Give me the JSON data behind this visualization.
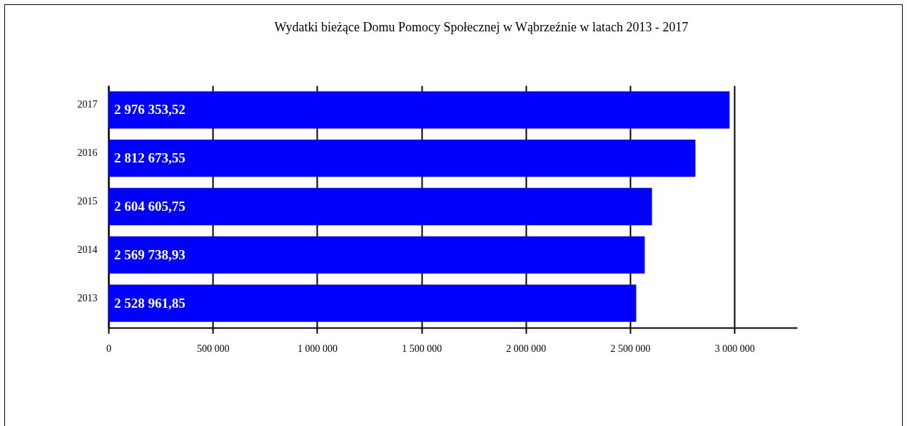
{
  "chart_data": {
    "type": "bar",
    "orientation": "horizontal",
    "title": "Wydatki bieżące Domu Pomocy Społecznej w Wąbrzeźnie w latach 2013 - 2017",
    "categories": [
      "2017",
      "2016",
      "2015",
      "2014",
      "2013"
    ],
    "values": [
      2976353.52,
      2812673.55,
      2604605.75,
      2569738.93,
      2528961.85
    ],
    "value_labels": [
      "2 976 353,52",
      "2 812 673,55",
      "2 604 605,75",
      "2 569 738,93",
      "2 528 961,85"
    ],
    "color": "#0000ff",
    "xlim": [
      0,
      3300000
    ],
    "xticks": [
      0,
      {
        "value": 500000,
        "label": "500 000"
      },
      {
        "value": 1000000,
        "label": "1 000 000"
      },
      {
        "value": 1500000,
        "label": "1 500 000"
      },
      {
        "value": 2000000,
        "label": "2 000 000"
      },
      {
        "value": 2500000,
        "label": "2 500 000"
      },
      {
        "value": 3000000,
        "label": "3 000 000"
      }
    ],
    "grid": "x"
  }
}
